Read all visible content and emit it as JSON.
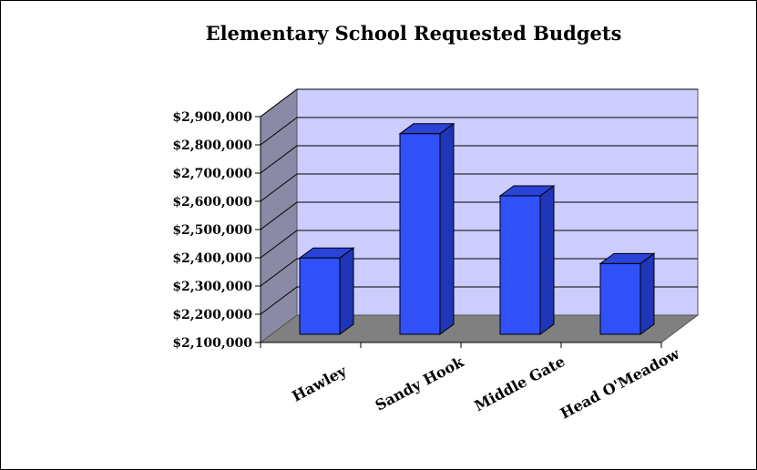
{
  "chart_data": {
    "type": "bar",
    "title": "Elementary School Requested Budgets",
    "categories": [
      "Hawley",
      "Sandy Hook",
      "Middle Gate",
      "Head O'Meadow"
    ],
    "values": [
      2380000,
      2820000,
      2600000,
      2360000
    ],
    "ylim": [
      2100000,
      2900000
    ],
    "yticks": [
      "$2,100,000",
      "$2,200,000",
      "$2,300,000",
      "$2,400,000",
      "$2,500,000",
      "$2,600,000",
      "$2,700,000",
      "$2,800,000",
      "$2,900,000"
    ],
    "grid": true,
    "style": "3d",
    "colors": {
      "bar_front": "#3050f8",
      "bar_side": "#1f36b8",
      "bar_top": "#2a44d8",
      "back_wall": "#ccccff",
      "side_wall": "#8a8aa6",
      "floor": "#808080",
      "outline": "#000000"
    }
  }
}
